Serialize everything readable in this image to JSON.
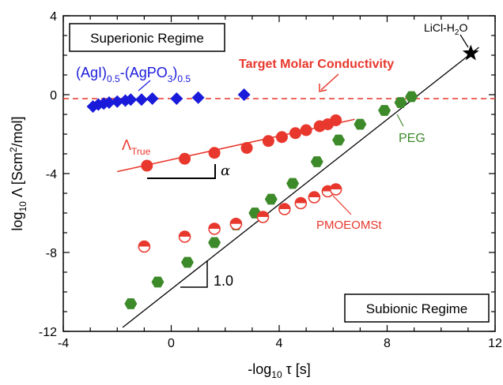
{
  "chart_data": {
    "type": "scatter",
    "xlim": [
      -4,
      12
    ],
    "ylim": [
      -12,
      4
    ],
    "x_ticks": [
      "-4",
      "0",
      "4",
      "8",
      "12"
    ],
    "y_ticks": [
      "-12",
      "-8",
      "-4",
      "0",
      "4"
    ],
    "xlabel": {
      "pre": "-log",
      "sub": "10",
      "post": " τ [s]"
    },
    "ylabel": {
      "pre": "log",
      "sub": "10",
      "post": " Λ  [Scm",
      "sup": "2",
      "post2": "/mol]"
    },
    "series": [
      {
        "name": "(AgI)0.5-(AgPO3)0.5",
        "marker": "diamond",
        "color": "#1a1adb",
        "x": [
          -2.9,
          -2.7,
          -2.5,
          -2.3,
          -2.0,
          -1.7,
          -1.5,
          -1.1,
          -0.7,
          0.2,
          1.0,
          2.7
        ],
        "y": [
          -0.6,
          -0.5,
          -0.45,
          -0.4,
          -0.35,
          -0.3,
          -0.25,
          -0.25,
          -0.2,
          -0.2,
          -0.15,
          0.0
        ]
      },
      {
        "name": "ΛTrue",
        "marker": "circle",
        "color": "#e8372c",
        "x": [
          -0.9,
          0.5,
          1.6,
          2.8,
          3.6,
          4.1,
          4.6,
          5.0,
          5.5,
          5.8,
          6.1
        ],
        "y": [
          -3.6,
          -3.25,
          -2.95,
          -2.7,
          -2.35,
          -2.15,
          -1.95,
          -1.8,
          -1.6,
          -1.5,
          -1.3
        ]
      },
      {
        "name": "PEG",
        "marker": "hexagon",
        "color": "#3d8a2a",
        "x": [
          -1.5,
          -0.5,
          0.6,
          1.6,
          2.4,
          3.1,
          3.7,
          4.5,
          5.4,
          6.2,
          7.0,
          7.9,
          8.5,
          8.9
        ],
        "y": [
          -10.6,
          -9.5,
          -8.5,
          -7.5,
          -6.6,
          -6.0,
          -5.3,
          -4.5,
          -3.4,
          -2.3,
          -1.5,
          -0.8,
          -0.4,
          -0.1
        ]
      },
      {
        "name": "PMOEOMSt",
        "marker": "half-circle",
        "color": "#e8372c",
        "x": [
          -1.0,
          0.5,
          1.6,
          2.4,
          3.4,
          4.2,
          4.8,
          5.3,
          5.8,
          6.1
        ],
        "y": [
          -7.7,
          -7.2,
          -6.8,
          -6.55,
          -6.2,
          -5.8,
          -5.5,
          -5.2,
          -4.9,
          -4.8
        ]
      },
      {
        "name": "LiCl-H2O",
        "marker": "star",
        "color": "#000000",
        "x": [
          11.1
        ],
        "y": [
          2.1
        ]
      }
    ],
    "reference_lines": {
      "target_molar_conductivity_y": -0.2,
      "slope_one_line": {
        "x": [
          -1.8,
          11.4
        ],
        "y": [
          -11.8,
          2.4
        ]
      },
      "lambda_true_fit": {
        "x": [
          -2.0,
          6.8
        ],
        "y": [
          -3.9,
          -1.25
        ]
      }
    },
    "annotations": {
      "superionic": "Superionic Regime",
      "subionic": "Subionic Regime",
      "target": "Target Molar Conductivity",
      "agi_base": "(AgI)",
      "agi_sub1": "0.5",
      "agi_mid": "-(AgPO",
      "agi_sub2": "3",
      "agi_end": ")",
      "agi_sub3": "0.5",
      "lambda_base": "Λ",
      "lambda_sub": "True",
      "alpha": "α",
      "slope_label": "1.0",
      "peg": "PEG",
      "pmoeomst": "PMOEOMSt",
      "licl_base": "LiCl-H",
      "licl_sub": "2",
      "licl_end": "O"
    }
  }
}
